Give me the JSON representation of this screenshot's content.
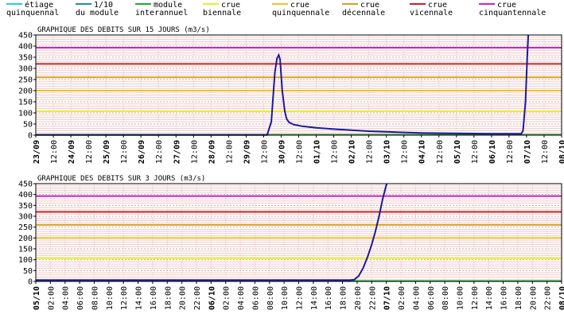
{
  "legend": [
    {
      "line1": "étiage",
      "line2": "quinquennal",
      "color": "#22cce0"
    },
    {
      "line1": "1/10",
      "line2": "du module",
      "color": "#1a8fa0"
    },
    {
      "line1": "module",
      "line2": "interannuel",
      "color": "#22aa22"
    },
    {
      "line1": "crue",
      "line2": "biennale",
      "color": "#eeee22"
    },
    {
      "line1": "crue",
      "line2": "quinquennale",
      "color": "#f0c020"
    },
    {
      "line1": "crue",
      "line2": "décennale",
      "color": "#d4a020"
    },
    {
      "line1": "crue",
      "line2": "vicennale",
      "color": "#cc2020"
    },
    {
      "line1": "crue",
      "line2": "cinquantennale",
      "color": "#cc22cc"
    }
  ],
  "chart_data": [
    {
      "type": "line",
      "title": "GRAPHIQUE DES DEBITS SUR 15 JOURS (m3/s)",
      "ylim": [
        0,
        450
      ],
      "yticks": [
        0,
        50,
        100,
        150,
        200,
        250,
        300,
        350,
        400,
        450
      ],
      "xlim": [
        0,
        15
      ],
      "xtick_labels": [
        "23/09",
        "12:00",
        "24/09",
        "12:00",
        "25/09",
        "12:00",
        "26/09",
        "12:00",
        "27/09",
        "12:00",
        "28/09",
        "12:00",
        "29/09",
        "12:00",
        "30/09",
        "12:00",
        "01/10",
        "12:00",
        "02/10",
        "12:00",
        "03/10",
        "12:00",
        "04/10",
        "12:00",
        "05/10",
        "12:00",
        "06/10",
        "12:00",
        "07/10",
        "12:00",
        "08/10"
      ],
      "thresholds": [
        {
          "name": "crue biennale",
          "value": 107,
          "color": "#eeee22"
        },
        {
          "name": "crue quinquennale",
          "value": 200,
          "color": "#f0c020"
        },
        {
          "name": "crue décennale",
          "value": 260,
          "color": "#d4a020"
        },
        {
          "name": "crue vicennale",
          "value": 320,
          "color": "#cc2020"
        },
        {
          "name": "crue cinquantennale",
          "value": 393,
          "color": "#cc22cc"
        },
        {
          "name": "module interannuel",
          "value": 2,
          "color": "#22aa22"
        }
      ],
      "series": [
        {
          "color": "#1a1a9a",
          "points": [
            [
              0,
              1
            ],
            [
              6.6,
              1
            ],
            [
              6.72,
              60
            ],
            [
              6.82,
              280
            ],
            [
              6.88,
              345
            ],
            [
              6.93,
              360
            ],
            [
              6.97,
              340
            ],
            [
              7.03,
              200
            ],
            [
              7.1,
              110
            ],
            [
              7.15,
              75
            ],
            [
              7.22,
              58
            ],
            [
              7.35,
              48
            ],
            [
              7.6,
              40
            ],
            [
              8,
              33
            ],
            [
              8.5,
              27
            ],
            [
              9,
              22
            ],
            [
              9.5,
              18
            ],
            [
              10,
              15
            ],
            [
              10.5,
              12
            ],
            [
              11,
              10
            ],
            [
              11.5,
              9
            ],
            [
              12,
              8
            ],
            [
              12.5,
              7
            ],
            [
              13,
              6
            ],
            [
              13.5,
              6
            ],
            [
              13.85,
              6
            ],
            [
              13.9,
              20
            ],
            [
              13.97,
              150
            ],
            [
              14.02,
              350
            ],
            [
              14.05,
              450
            ]
          ]
        }
      ]
    },
    {
      "type": "line",
      "title": "GRAPHIQUE DES DEBITS SUR 3 JOURS (m3/s)",
      "ylim": [
        0,
        450
      ],
      "yticks": [
        0,
        50,
        100,
        150,
        200,
        250,
        300,
        350,
        400,
        450
      ],
      "xlim": [
        0,
        72
      ],
      "xtick_labels": [
        "05/10",
        "02:00",
        "04:00",
        "06:00",
        "08:00",
        "10:00",
        "12:00",
        "14:00",
        "16:00",
        "18:00",
        "20:00",
        "22:00",
        "06/10",
        "02:00",
        "04:00",
        "06:00",
        "08:00",
        "10:00",
        "12:00",
        "14:00",
        "16:00",
        "18:00",
        "20:00",
        "22:00",
        "07/10",
        "02:00",
        "04:00",
        "06:00",
        "08:00",
        "10:00",
        "12:00",
        "14:00",
        "16:00",
        "18:00",
        "20:00",
        "22:00",
        "08/10"
      ],
      "thresholds": [
        {
          "name": "crue biennale",
          "value": 107,
          "color": "#eeee22"
        },
        {
          "name": "crue quinquennale",
          "value": 200,
          "color": "#f0c020"
        },
        {
          "name": "crue décennale",
          "value": 260,
          "color": "#d4a020"
        },
        {
          "name": "crue vicennale",
          "value": 320,
          "color": "#cc2020"
        },
        {
          "name": "crue cinquantennale",
          "value": 393,
          "color": "#cc22cc"
        },
        {
          "name": "module interannuel",
          "value": 2,
          "color": "#22aa22"
        }
      ],
      "series": [
        {
          "color": "#1a1a9a",
          "points": [
            [
              0,
              6
            ],
            [
              43,
              6
            ],
            [
              43.6,
              8
            ],
            [
              44.2,
              25
            ],
            [
              44.8,
              60
            ],
            [
              45.4,
              110
            ],
            [
              46,
              170
            ],
            [
              46.5,
              230
            ],
            [
              47,
              300
            ],
            [
              47.5,
              380
            ],
            [
              48,
              445
            ],
            [
              48.1,
              450
            ]
          ]
        }
      ]
    }
  ]
}
